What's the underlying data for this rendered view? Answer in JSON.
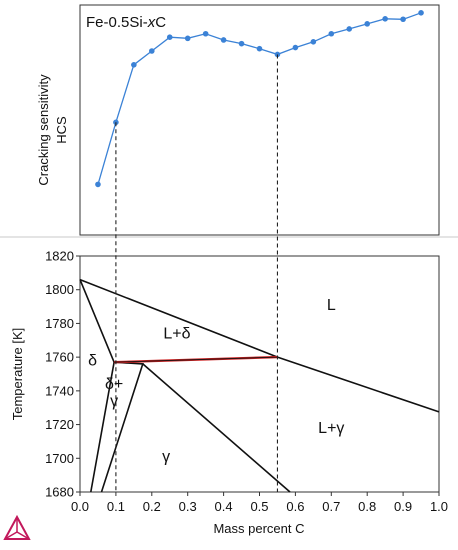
{
  "chart_data": [
    {
      "type": "line",
      "title": "Fe-0.5Si-xC",
      "title_parts": [
        "Fe-0.5Si-",
        "x",
        "C"
      ],
      "ylabel": "Cracking sensitivity",
      "ylabel2": "HCS",
      "xlim": [
        0.0,
        1.0
      ],
      "ylim": [
        0,
        100
      ],
      "y_ticks_shown": false,
      "series_color": "#3b82d6",
      "series": [
        {
          "x": [
            0.05,
            0.1,
            0.15,
            0.2,
            0.25,
            0.3,
            0.35,
            0.4,
            0.45,
            0.5,
            0.55,
            0.6,
            0.65,
            0.7,
            0.75,
            0.8,
            0.85,
            0.9,
            0.95
          ],
          "y": [
            22,
            49,
            74,
            80,
            86,
            85.5,
            87.5,
            84.8,
            83.2,
            81,
            78.5,
            81.5,
            84,
            87.5,
            89.6,
            91.8,
            94,
            93.8,
            96.6
          ]
        }
      ]
    },
    {
      "type": "phase_diagram",
      "xlabel": "Mass percent C",
      "ylabel": "Temperature [K]",
      "xlim": [
        0.0,
        1.0
      ],
      "ylim": [
        1680,
        1820
      ],
      "x_ticks": [
        "0.0",
        "0.1",
        "0.2",
        "0.3",
        "0.4",
        "0.5",
        "0.6",
        "0.7",
        "0.8",
        "0.9",
        "1.0"
      ],
      "x_tick_values": [
        0,
        0.1,
        0.2,
        0.3,
        0.4,
        0.5,
        0.6,
        0.7,
        0.8,
        0.9,
        1.0
      ],
      "y_ticks": [
        "1680",
        "1700",
        "1720",
        "1740",
        "1760",
        "1780",
        "1800",
        "1820"
      ],
      "y_tick_values": [
        1680,
        1700,
        1720,
        1740,
        1760,
        1780,
        1800,
        1820
      ],
      "line_color": "#111111",
      "highlight_color": "#cc1f1f",
      "phase_lines": [
        [
          [
            0.0,
            1806
          ],
          [
            0.55,
            1760
          ],
          [
            1.0,
            1727.5
          ]
        ],
        [
          [
            0.0,
            1806
          ],
          [
            0.095,
            1757
          ]
        ],
        [
          [
            0.095,
            1757
          ],
          [
            0.03,
            1680
          ]
        ],
        [
          [
            0.095,
            1757
          ],
          [
            0.175,
            1756
          ],
          [
            0.06,
            1680
          ]
        ],
        [
          [
            0.175,
            1756
          ],
          [
            0.585,
            1680
          ]
        ],
        [
          [
            0.095,
            1757
          ],
          [
            0.55,
            1760
          ]
        ]
      ],
      "highlight_line": [
        [
          0.095,
          1757
        ],
        [
          0.55,
          1760
        ]
      ],
      "region_labels": [
        {
          "text": "L",
          "x": 0.7,
          "y": 1788
        },
        {
          "text": "L+δ",
          "x": 0.27,
          "y": 1771
        },
        {
          "text": "δ",
          "x": 0.035,
          "y": 1755
        },
        {
          "text": "δ+",
          "x": 0.095,
          "y": 1741
        },
        {
          "text": "γ",
          "x": 0.095,
          "y": 1731
        },
        {
          "text": "L+γ",
          "x": 0.7,
          "y": 1715
        },
        {
          "text": "γ",
          "x": 0.24,
          "y": 1698
        }
      ],
      "reference_x": [
        0.1,
        0.55
      ]
    }
  ]
}
